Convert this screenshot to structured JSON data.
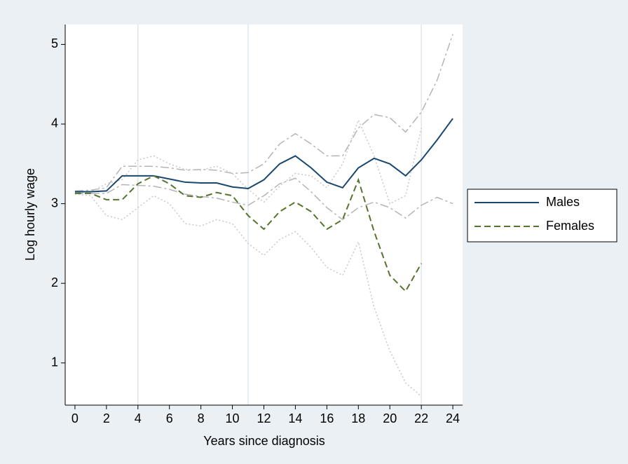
{
  "chart_data": {
    "type": "line",
    "x_label": "Years since diagnosis",
    "y_label": "Log hourly wage",
    "x": [
      0,
      1,
      2,
      3,
      4,
      5,
      6,
      7,
      8,
      9,
      10,
      11,
      12,
      13,
      14,
      15,
      16,
      17,
      18,
      19,
      20,
      21,
      22,
      23,
      24
    ],
    "series": [
      {
        "color": "#b5b5b5",
        "dash": "dashdot",
        "values": [
          3.16,
          3.17,
          3.2,
          3.47,
          3.47,
          3.47,
          3.45,
          3.42,
          3.43,
          3.42,
          3.38,
          3.39,
          3.5,
          3.75,
          3.88,
          3.75,
          3.6,
          3.6,
          3.95,
          4.12,
          4.08,
          3.9,
          4.15,
          4.55,
          5.13
        ]
      },
      {
        "color": "#b5b5b5",
        "dash": "dashdot",
        "values": [
          3.13,
          3.13,
          3.13,
          3.24,
          3.23,
          3.22,
          3.18,
          3.12,
          3.09,
          3.07,
          3.02,
          2.98,
          3.1,
          3.25,
          3.32,
          3.15,
          2.95,
          2.8,
          2.95,
          3.02,
          2.95,
          2.82,
          2.98,
          3.08,
          3.0
        ]
      },
      {
        "color": "#c8c8c8",
        "dash": "dotted",
        "values": [
          3.14,
          3.15,
          3.25,
          3.3,
          3.55,
          3.6,
          3.5,
          3.43,
          3.42,
          3.47,
          3.38,
          3.18,
          3.02,
          3.22,
          3.38,
          3.35,
          3.2,
          3.5,
          4.05,
          3.6,
          3.0,
          3.1,
          3.95,
          null,
          null
        ]
      },
      {
        "color": "#c8c8c8",
        "dash": "dotted",
        "values": [
          3.12,
          3.1,
          2.85,
          2.8,
          2.95,
          3.1,
          3.0,
          2.75,
          2.72,
          2.8,
          2.75,
          2.5,
          2.35,
          2.55,
          2.65,
          2.45,
          2.2,
          2.1,
          2.52,
          1.7,
          1.15,
          0.75,
          0.58,
          null,
          null
        ]
      },
      {
        "name": "Males",
        "color": "#1a476f",
        "dash": "solid",
        "values": [
          3.15,
          3.15,
          3.16,
          3.35,
          3.35,
          3.35,
          3.31,
          3.27,
          3.26,
          3.26,
          3.21,
          3.19,
          3.3,
          3.5,
          3.6,
          3.45,
          3.27,
          3.2,
          3.45,
          3.57,
          3.5,
          3.35,
          3.55,
          3.8,
          4.07
        ]
      },
      {
        "name": "Females",
        "color": "#55752f",
        "dash": "dashed",
        "values": [
          3.13,
          3.13,
          3.05,
          3.05,
          3.25,
          3.35,
          3.25,
          3.1,
          3.08,
          3.14,
          3.1,
          2.85,
          2.68,
          2.9,
          3.02,
          2.9,
          2.68,
          2.8,
          3.3,
          2.65,
          2.1,
          1.9,
          2.25,
          null,
          null
        ]
      }
    ],
    "reference_lines_x": [
      4,
      11,
      22
    ],
    "xlim": [
      -0.62,
      24.62
    ],
    "ylim": [
      0.47,
      5.25
    ],
    "xticks": [
      0,
      2,
      4,
      6,
      8,
      10,
      12,
      14,
      16,
      18,
      20,
      22,
      24
    ],
    "yticks": [
      1,
      2,
      3,
      4,
      5
    ],
    "legend": "right"
  }
}
